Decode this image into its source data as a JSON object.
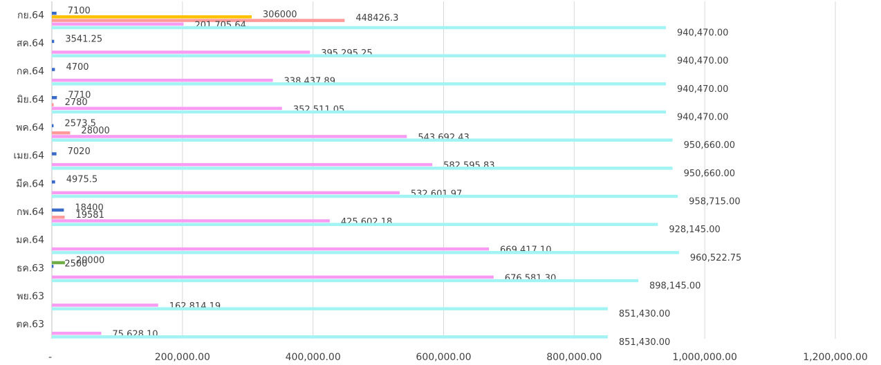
{
  "chart_data": {
    "type": "hbar",
    "categories": [
      "ตค.63",
      "พย.63",
      "ธค.63",
      "มค.64",
      "กพ.64",
      "มีค.64",
      "เมย.64",
      "พค.64",
      "มิย.64",
      "กค.64",
      "สค.64",
      "กย.64"
    ],
    "series": [
      {
        "color": "#70ad47",
        "values": [
          null,
          null,
          20000,
          null,
          null,
          null,
          null,
          null,
          null,
          null,
          null,
          null
        ]
      },
      {
        "color": "#3a6bc9",
        "values": [
          null,
          null,
          2500,
          null,
          18400,
          4975.5,
          7020,
          2573.5,
          7710,
          4700,
          3541.25,
          7100
        ]
      },
      {
        "color": "#ffc000",
        "values": [
          null,
          null,
          null,
          null,
          null,
          null,
          null,
          null,
          null,
          null,
          null,
          306000
        ]
      },
      {
        "color": "#ff9a9a",
        "values": [
          null,
          null,
          null,
          null,
          19581,
          null,
          null,
          28000,
          2780,
          null,
          null,
          448426.3
        ]
      },
      {
        "color": "#f79cf2",
        "values": [
          75628.1,
          162814.19,
          676581.3,
          669417.1,
          425602.18,
          532601.97,
          582595.83,
          543692.43,
          352511.05,
          338437.89,
          395295.25,
          201705.64
        ],
        "value_labels": [
          "75,628.10",
          "162,814.19",
          "676,581.30",
          "669,417.10",
          "425,602.18",
          "532,601.97",
          "582,595.83",
          "543,692.43",
          "352,511.05",
          "338,437.89",
          "395,295.25",
          "201,705.64"
        ]
      },
      {
        "color": "#a2f3f3",
        "values": [
          851430,
          851430,
          898145,
          960522.75,
          928145,
          958715,
          950660,
          950660,
          940470,
          940470,
          940470,
          940470
        ],
        "value_labels": [
          "851,430.00",
          "851,430.00",
          "898,145.00",
          "960,522.75",
          "928,145.00",
          "958,715.00",
          "950,660.00",
          "950,660.00",
          "940,470.00",
          "940,470.00",
          "940,470.00",
          "940,470.00"
        ]
      }
    ],
    "xlim": [
      0,
      1200000
    ],
    "xticks": [
      {
        "value": 0,
        "label": "-"
      },
      {
        "value": 200000,
        "label": "200,000.00"
      },
      {
        "value": 400000,
        "label": "400,000.00"
      },
      {
        "value": 600000,
        "label": "600,000.00"
      },
      {
        "value": 800000,
        "label": "800,000.00"
      },
      {
        "value": 1000000,
        "label": "1,000,000.00"
      },
      {
        "value": 1200000,
        "label": "1,200,000.00"
      }
    ],
    "grid": true
  }
}
